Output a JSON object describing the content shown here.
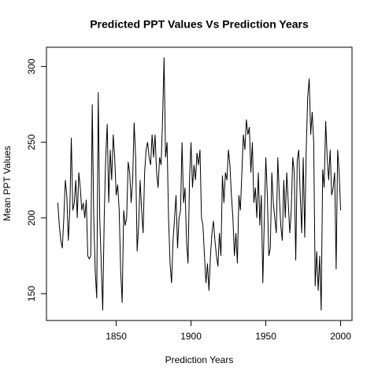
{
  "chart_data": {
    "type": "line",
    "title": "Predicted PPT Values Vs Prediction Years",
    "xlabel": "Prediction Years",
    "ylabel": "Mean PPT Values",
    "x": [
      1811,
      1812,
      1813,
      1814,
      1815,
      1816,
      1817,
      1818,
      1819,
      1820,
      1821,
      1822,
      1823,
      1824,
      1825,
      1826,
      1827,
      1828,
      1829,
      1830,
      1831,
      1832,
      1833,
      1834,
      1835,
      1836,
      1837,
      1838,
      1839,
      1840,
      1841,
      1842,
      1843,
      1844,
      1845,
      1846,
      1847,
      1848,
      1849,
      1850,
      1851,
      1852,
      1853,
      1854,
      1855,
      1856,
      1857,
      1858,
      1859,
      1860,
      1861,
      1862,
      1863,
      1864,
      1865,
      1866,
      1867,
      1868,
      1869,
      1870,
      1871,
      1872,
      1873,
      1874,
      1875,
      1876,
      1877,
      1878,
      1879,
      1880,
      1881,
      1882,
      1883,
      1884,
      1885,
      1886,
      1887,
      1888,
      1889,
      1890,
      1891,
      1892,
      1893,
      1894,
      1895,
      1896,
      1897,
      1898,
      1899,
      1900,
      1901,
      1902,
      1903,
      1904,
      1905,
      1906,
      1907,
      1908,
      1909,
      1910,
      1911,
      1912,
      1913,
      1914,
      1915,
      1916,
      1917,
      1918,
      1919,
      1920,
      1921,
      1922,
      1923,
      1924,
      1925,
      1926,
      1927,
      1928,
      1929,
      1930,
      1931,
      1932,
      1933,
      1934,
      1935,
      1936,
      1937,
      1938,
      1939,
      1940,
      1941,
      1942,
      1943,
      1944,
      1945,
      1946,
      1947,
      1948,
      1949,
      1950,
      1951,
      1952,
      1953,
      1954,
      1955,
      1956,
      1957,
      1958,
      1959,
      1960,
      1961,
      1962,
      1963,
      1964,
      1965,
      1966,
      1967,
      1968,
      1969,
      1970,
      1971,
      1972,
      1973,
      1974,
      1975,
      1976,
      1977,
      1978,
      1979,
      1980,
      1981,
      1982,
      1983,
      1984,
      1985,
      1986,
      1987,
      1988,
      1989,
      1990,
      1991,
      1992,
      1993,
      1994,
      1995,
      1996,
      1997,
      1998,
      1999,
      2000
    ],
    "values": [
      210,
      195,
      185,
      180,
      200,
      225,
      215,
      185,
      205,
      253,
      205,
      210,
      225,
      200,
      230,
      220,
      205,
      210,
      200,
      212,
      175,
      173,
      175,
      275,
      200,
      165,
      147,
      283,
      200,
      170,
      139,
      200,
      240,
      262,
      210,
      245,
      225,
      255,
      240,
      215,
      222,
      205,
      165,
      144,
      205,
      195,
      200,
      237,
      230,
      210,
      225,
      263,
      240,
      178,
      195,
      225,
      205,
      190,
      230,
      245,
      250,
      240,
      235,
      255,
      240,
      255,
      230,
      220,
      240,
      235,
      265,
      306,
      240,
      250,
      200,
      170,
      157,
      185,
      200,
      215,
      180,
      200,
      205,
      250,
      210,
      220,
      185,
      170,
      225,
      250,
      220,
      235,
      225,
      243,
      235,
      245,
      200,
      195,
      175,
      157,
      170,
      152,
      175,
      190,
      198,
      185,
      175,
      168,
      190,
      175,
      228,
      210,
      230,
      225,
      245,
      235,
      215,
      200,
      175,
      190,
      170,
      215,
      205,
      230,
      255,
      245,
      265,
      255,
      260,
      230,
      250,
      210,
      220,
      200,
      230,
      195,
      215,
      157,
      200,
      240,
      215,
      175,
      180,
      230,
      210,
      200,
      190,
      240,
      215,
      195,
      185,
      225,
      200,
      230,
      210,
      190,
      205,
      240,
      230,
      172,
      238,
      245,
      215,
      190,
      240,
      187,
      245,
      280,
      292,
      255,
      270,
      250,
      155,
      178,
      152,
      175,
      139,
      232,
      220,
      264,
      240,
      225,
      245,
      215,
      220,
      230,
      166,
      245,
      230,
      205
    ],
    "color": "#000000",
    "xlim": [
      1803.4,
      2007.6
    ],
    "xticks": [
      1850,
      1900,
      1950,
      2000
    ],
    "ylim": [
      132.3,
      312.7
    ],
    "yticks": [
      150,
      200,
      250,
      300
    ]
  }
}
